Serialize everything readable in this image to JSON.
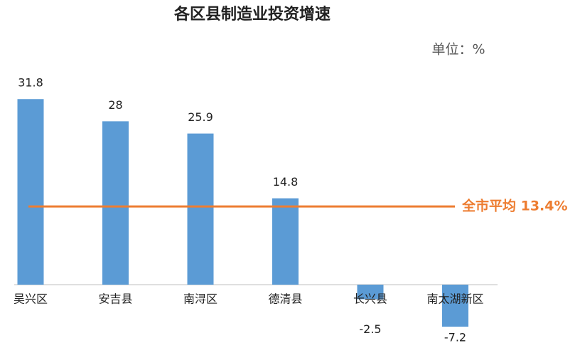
{
  "chart_data": {
    "type": "bar",
    "title": "各区县制造业投资增速",
    "subtitle": "单位：%",
    "categories": [
      "吴兴区",
      "安吉县",
      "南浔区",
      "德清县",
      "长兴县",
      "南太湖新区"
    ],
    "values": [
      31.8,
      28,
      25.9,
      14.8,
      -2.5,
      -7.2
    ],
    "color": "#5b9bd5",
    "reference_line": {
      "value": 13.4,
      "label": "全市平均 13.4%",
      "color": "#ed7d31"
    }
  }
}
